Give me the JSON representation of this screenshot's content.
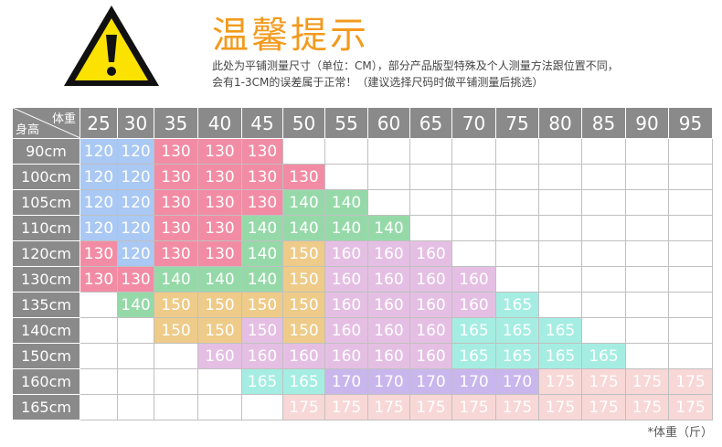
{
  "header": {
    "title": "温馨提示",
    "icon": "warning-icon",
    "note_line1": "此处为平铺测量尺寸（单位：CM），部分产品版型特殊及个人测量方法跟位置不同，",
    "note_line2": "会有1-3CM的误差属于正常！（建议选择尺码时做平铺测量后挑选）"
  },
  "table": {
    "corner_weight": "体重",
    "corner_height": "身高",
    "weights": [
      "25",
      "30",
      "35",
      "40",
      "45",
      "50",
      "55",
      "60",
      "65",
      "70",
      "75",
      "80",
      "85",
      "90",
      "95"
    ],
    "rows": [
      {
        "height": "90cm",
        "cells": [
          "120",
          "120",
          "130",
          "130",
          "130",
          "",
          "",
          "",
          "",
          "",
          "",
          "",
          "",
          "",
          ""
        ]
      },
      {
        "height": "100cm",
        "cells": [
          "120",
          "120",
          "130",
          "130",
          "130",
          "130",
          "",
          "",
          "",
          "",
          "",
          "",
          "",
          "",
          ""
        ]
      },
      {
        "height": "105cm",
        "cells": [
          "120",
          "120",
          "130",
          "130",
          "130",
          "140",
          "140",
          "",
          "",
          "",
          "",
          "",
          "",
          "",
          ""
        ]
      },
      {
        "height": "110cm",
        "cells": [
          "120",
          "120",
          "130",
          "130",
          "140",
          "140",
          "140",
          "140",
          "",
          "",
          "",
          "",
          "",
          "",
          ""
        ]
      },
      {
        "height": "120cm",
        "cells": [
          "130",
          "120",
          "130",
          "130",
          "140",
          "150",
          "160",
          "160",
          "160",
          "",
          "",
          "",
          "",
          "",
          ""
        ]
      },
      {
        "height": "130cm",
        "cells": [
          "130",
          "130",
          "140",
          "140",
          "140",
          "150",
          "160",
          "160",
          "160",
          "160",
          "",
          "",
          "",
          "",
          ""
        ]
      },
      {
        "height": "135cm",
        "cells": [
          "",
          "140",
          "150",
          "150",
          "150",
          "150",
          "160",
          "160",
          "160",
          "160",
          "165",
          "",
          "",
          "",
          ""
        ]
      },
      {
        "height": "140cm",
        "cells": [
          "",
          "",
          "150",
          "150",
          "150",
          "150",
          "160",
          "160",
          "160",
          "165",
          "165",
          "165",
          "",
          "",
          ""
        ]
      },
      {
        "height": "150cm",
        "cells": [
          "",
          "",
          "",
          "160",
          "160",
          "160",
          "160",
          "160",
          "160",
          "165",
          "165",
          "165",
          "165",
          "",
          ""
        ]
      },
      {
        "height": "160cm",
        "cells": [
          "",
          "",
          "",
          "",
          "165",
          "165",
          "170",
          "170",
          "170",
          "170",
          "170",
          "175",
          "175",
          "175",
          "175"
        ]
      },
      {
        "height": "165cm",
        "cells": [
          "",
          "",
          "",
          "",
          "",
          "175",
          "175",
          "175",
          "175",
          "175",
          "175",
          "175",
          "175",
          "175",
          "175"
        ]
      }
    ],
    "tone_overrides": [
      {
        "row": 7,
        "col": 4,
        "tone": "160"
      }
    ],
    "unit_note": "*体重（斤）"
  },
  "colors": {
    "120": "#a9c8f3",
    "130": "#f28ca4",
    "140": "#96d9a9",
    "150": "#eecb88",
    "160": "#e4bfe3",
    "165": "#a5ede2",
    "170": "#c8b6ec",
    "175": "#f8d7d7",
    "header": "#8a8a8a",
    "title": "#f39a1e"
  }
}
